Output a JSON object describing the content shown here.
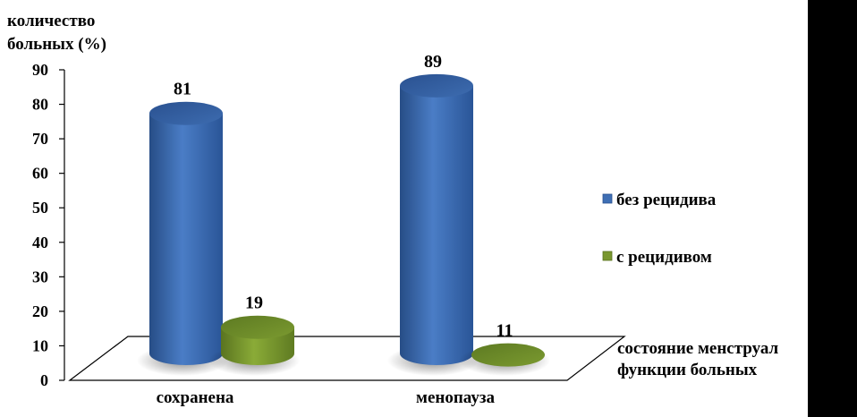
{
  "chart_data": {
    "type": "bar",
    "ylabel_line1": "количество",
    "ylabel_line2": "больных (%)",
    "xlabel_line1": "состояние менструал",
    "xlabel_line2": "функции больных",
    "categories": [
      "сохранена",
      "менопауза"
    ],
    "series": [
      {
        "name": "без рецидива",
        "values": [
          81,
          89
        ],
        "color": "#3f6fb4"
      },
      {
        "name": "с рецидивом",
        "values": [
          19,
          11
        ],
        "color": "#79972e"
      }
    ],
    "yticks": [
      "0",
      "10",
      "20",
      "30",
      "40",
      "50",
      "60",
      "70",
      "80",
      "90"
    ],
    "ylim": [
      0,
      90
    ],
    "legend_position": "right",
    "grid": false,
    "style": "3d-cylinder"
  }
}
